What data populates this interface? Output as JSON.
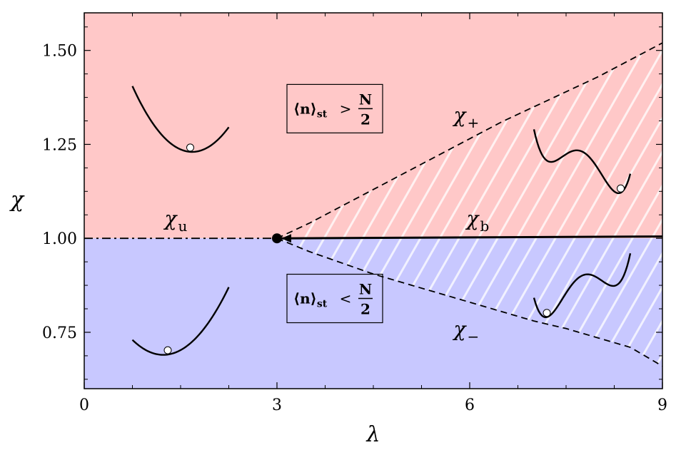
{
  "chart_data": {
    "type": "line",
    "xlabel": "λ",
    "ylabel": "χ",
    "xlim": [
      0,
      9
    ],
    "ylim": [
      0.6,
      1.6
    ],
    "x_ticks": [
      {
        "value": 0,
        "label": "0"
      },
      {
        "value": 3,
        "label": "3"
      },
      {
        "value": 6,
        "label": "6"
      },
      {
        "value": 9,
        "label": "9"
      }
    ],
    "x_minor_ticks": [
      0.75,
      1.5,
      2.25,
      3.75,
      4.5,
      5.25,
      6.75,
      7.5,
      8.25
    ],
    "y_ticks": [
      {
        "value": 0.75,
        "label": "0.75"
      },
      {
        "value": 1.0,
        "label": "1.00"
      },
      {
        "value": 1.25,
        "label": "1.25"
      },
      {
        "value": 1.5,
        "label": "1.50"
      }
    ],
    "y_minor_ticks": [
      0.625,
      0.6875,
      0.8125,
      0.875,
      0.9375,
      1.0625,
      1.125,
      1.1875,
      1.3125,
      1.375,
      1.4375,
      1.5625
    ],
    "regions": [
      {
        "name": "upper",
        "y_from": 1.0,
        "y_to": 1.6,
        "color": "#ffc8c8"
      },
      {
        "name": "lower",
        "y_from": 0.6,
        "y_to": 1.0,
        "color": "#c8c8ff"
      }
    ],
    "critical_point": {
      "x": 3,
      "y": 1.0
    },
    "series": [
      {
        "id": "chi_u",
        "style": "dashdot",
        "label_main": "χ",
        "label_sub": "u",
        "label_pos": [
          1.25,
          1.035
        ],
        "x": [
          0,
          3
        ],
        "y": [
          1.0,
          1.0
        ]
      },
      {
        "id": "chi_b",
        "style": "solid",
        "label_main": "χ",
        "label_sub": "b",
        "label_pos": [
          5.95,
          1.035
        ],
        "x": [
          3.0,
          9.0
        ],
        "y": [
          1.0,
          1.005
        ]
      },
      {
        "id": "chi_plus",
        "style": "dashed",
        "label_main": "χ",
        "label_sub": "+",
        "label_pos": [
          5.75,
          1.31
        ],
        "x": [
          3.0,
          3.5,
          4.0,
          4.5,
          5.0,
          5.5,
          6.0,
          6.5,
          7.0,
          7.5,
          8.0,
          8.5,
          9.0
        ],
        "y": [
          1.0,
          1.04,
          1.085,
          1.13,
          1.175,
          1.22,
          1.265,
          1.31,
          1.35,
          1.39,
          1.43,
          1.475,
          1.52
        ]
      },
      {
        "id": "chi_minus",
        "style": "dashed",
        "label_main": "χ",
        "label_sub": "−",
        "label_pos": [
          5.75,
          0.74
        ],
        "x": [
          3.0,
          3.5,
          4.0,
          4.5,
          5.0,
          5.5,
          6.0,
          6.5,
          7.0,
          7.5,
          8.0,
          8.5,
          9.0
        ],
        "y": [
          1.0,
          0.965,
          0.935,
          0.905,
          0.88,
          0.855,
          0.83,
          0.805,
          0.78,
          0.76,
          0.735,
          0.71,
          0.66
        ]
      }
    ],
    "annotations": [
      {
        "id": "box-upper",
        "x": 3.9,
        "y": 1.345,
        "text_lhs": "⟨n⟩",
        "sub": "st",
        "op": ">",
        "num": "N",
        "den": "2"
      },
      {
        "id": "box-lower",
        "x": 3.9,
        "y": 0.84,
        "text_lhs": "⟨n⟩",
        "sub": "st",
        "op": "<",
        "num": "N",
        "den": "2"
      }
    ],
    "insets": [
      {
        "id": "inset-single-well-upper",
        "x": [
          0.75,
          2.25
        ],
        "y": [
          1.23,
          1.405
        ],
        "ball_x": 1.65,
        "shape": "single-well-right"
      },
      {
        "id": "inset-single-well-lower",
        "x": [
          0.75,
          2.25
        ],
        "y": [
          0.69,
          0.87
        ],
        "ball_x": 1.3,
        "shape": "single-well-left"
      },
      {
        "id": "inset-double-well-upper",
        "x": [
          7.0,
          8.5
        ],
        "y": [
          1.12,
          1.29
        ],
        "ball_x": 8.35,
        "shape": "double-well-right-deep"
      },
      {
        "id": "inset-double-well-lower",
        "x": [
          7.0,
          8.5
        ],
        "y": [
          0.79,
          0.96
        ],
        "ball_x": 7.2,
        "shape": "double-well-left-deep"
      }
    ]
  }
}
